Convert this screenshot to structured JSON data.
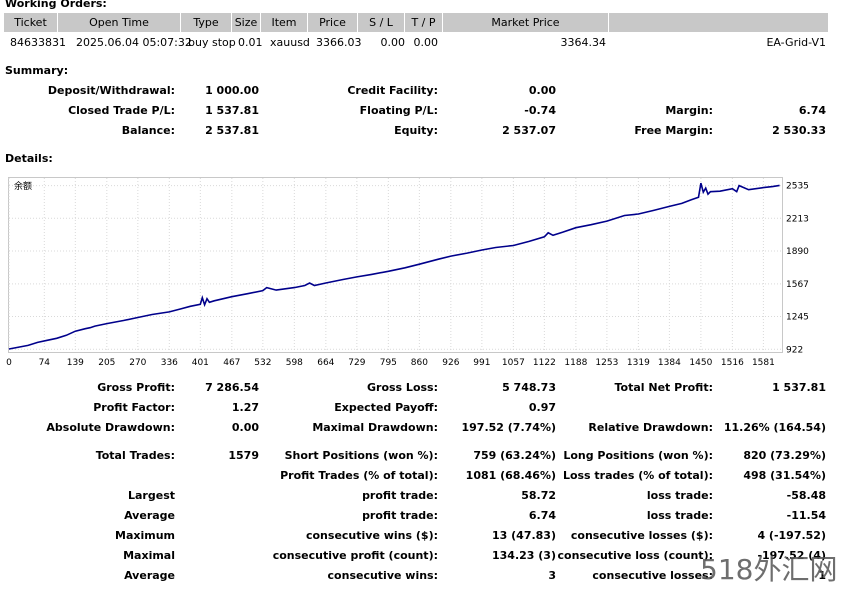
{
  "working_orders": {
    "title": "Working Orders:",
    "columns": [
      "Ticket",
      "Open Time",
      "Type",
      "Size",
      "Item",
      "Price",
      "S / L",
      "T / P",
      "Market Price"
    ],
    "row": {
      "ticket": "84633831",
      "open_time": "2025.06.04 05:07:32",
      "type": "buy stop",
      "size": "0.01",
      "item": "xauusd",
      "price": "3366.03",
      "sl": "0.00",
      "tp": "0.00",
      "market_price": "3364.34",
      "comment": "EA-Grid-V1"
    }
  },
  "summary": {
    "title": "Summary:",
    "deposit_label": "Deposit/Withdrawal:",
    "deposit_value": "1 000.00",
    "credit_label": "Credit Facility:",
    "credit_value": "0.00",
    "closed_label": "Closed Trade P/L:",
    "closed_value": "1 537.81",
    "floating_label": "Floating P/L:",
    "floating_value": "-0.74",
    "margin_label": "Margin:",
    "margin_value": "6.74",
    "balance_label": "Balance:",
    "balance_value": "2 537.81",
    "equity_label": "Equity:",
    "equity_value": "2 537.07",
    "free_margin_label": "Free Margin:",
    "free_margin_value": "2 530.33"
  },
  "details": {
    "title": "Details:"
  },
  "chart_data": {
    "type": "line",
    "legend_label": "余额",
    "x_ticks": [
      "0",
      "74",
      "139",
      "205",
      "270",
      "336",
      "401",
      "467",
      "532",
      "598",
      "664",
      "729",
      "795",
      "860",
      "926",
      "991",
      "1057",
      "1122",
      "1188",
      "1253",
      "1319",
      "1384",
      "1450",
      "1516",
      "1581"
    ],
    "y_ticks": [
      "2535",
      "2213",
      "1890",
      "1567",
      "1245",
      "922"
    ],
    "xlim": [
      0,
      1620
    ],
    "ylim": [
      895,
      2610
    ],
    "series": [
      {
        "name": "Balance",
        "color": "#00008b",
        "x": [
          0,
          40,
          60,
          80,
          100,
          120,
          139,
          160,
          170,
          180,
          205,
          240,
          270,
          300,
          336,
          360,
          380,
          401,
          405,
          410,
          415,
          420,
          430,
          467,
          500,
          532,
          540,
          560,
          598,
          620,
          630,
          640,
          664,
          700,
          729,
          760,
          795,
          830,
          860,
          900,
          926,
          960,
          991,
          1020,
          1057,
          1090,
          1122,
          1130,
          1140,
          1160,
          1188,
          1220,
          1253,
          1290,
          1319,
          1350,
          1384,
          1410,
          1430,
          1445,
          1450,
          1455,
          1460,
          1465,
          1470,
          1490,
          1516,
          1525,
          1530,
          1550,
          1581,
          1600,
          1615
        ],
        "values": [
          925,
          960,
          990,
          1010,
          1030,
          1060,
          1100,
          1125,
          1135,
          1150,
          1175,
          1205,
          1235,
          1265,
          1290,
          1320,
          1345,
          1365,
          1430,
          1360,
          1420,
          1385,
          1400,
          1440,
          1470,
          1500,
          1530,
          1505,
          1530,
          1550,
          1575,
          1550,
          1575,
          1610,
          1635,
          1660,
          1690,
          1725,
          1760,
          1810,
          1840,
          1870,
          1900,
          1925,
          1945,
          1985,
          2030,
          2070,
          2045,
          2075,
          2120,
          2150,
          2185,
          2240,
          2255,
          2290,
          2330,
          2360,
          2395,
          2420,
          2560,
          2470,
          2510,
          2450,
          2475,
          2480,
          2505,
          2475,
          2535,
          2495,
          2515,
          2525,
          2537
        ]
      }
    ]
  },
  "stats": {
    "gross_profit_label": "Gross Profit:",
    "gross_profit_value": "7 286.54",
    "gross_loss_label": "Gross Loss:",
    "gross_loss_value": "5 748.73",
    "total_net_label": "Total Net Profit:",
    "total_net_value": "1 537.81",
    "profit_factor_label": "Profit Factor:",
    "profit_factor_value": "1.27",
    "expected_payoff_label": "Expected Payoff:",
    "expected_payoff_value": "0.97",
    "abs_dd_label": "Absolute Drawdown:",
    "abs_dd_value": "0.00",
    "max_dd_label": "Maximal Drawdown:",
    "max_dd_value": "197.52 (7.74%)",
    "rel_dd_label": "Relative Drawdown:",
    "rel_dd_value": "11.26% (164.54)",
    "total_trades_label": "Total Trades:",
    "total_trades_value": "1579",
    "short_label": "Short Positions (won %):",
    "short_value": "759 (63.24%)",
    "long_label": "Long Positions (won %):",
    "long_value": "820 (73.29%)",
    "profit_trades_label": "Profit Trades (% of total):",
    "profit_trades_value": "1081 (68.46%)",
    "loss_trades_label": "Loss trades (% of total):",
    "loss_trades_value": "498 (31.54%)",
    "largest_label": "Largest",
    "largest_profit_label": "profit trade:",
    "largest_profit_value": "58.72",
    "largest_loss_label": "loss trade:",
    "largest_loss_value": "-58.48",
    "average_label": "Average",
    "average_profit_label": "profit trade:",
    "average_profit_value": "6.74",
    "average_loss_label": "loss trade:",
    "average_loss_value": "-11.54",
    "maximum_label": "Maximum",
    "max_cons_wins_label": "consecutive wins ($):",
    "max_cons_wins_value": "13 (47.83)",
    "max_cons_losses_label": "consecutive losses ($):",
    "max_cons_losses_value": "4 (-197.52)",
    "maximal_label": "Maximal",
    "maximal_profit_label": "consecutive profit (count):",
    "maximal_profit_value": "134.23 (3)",
    "maximal_loss_label": "consecutive loss (count):",
    "maximal_loss_value": "-197.52 (4)",
    "average2_label": "Average",
    "avg_cons_wins_label": "consecutive wins:",
    "avg_cons_wins_value": "3",
    "avg_cons_losses_label": "consecutive losses:",
    "avg_cons_losses_value": "1"
  },
  "watermark": "518外汇网"
}
